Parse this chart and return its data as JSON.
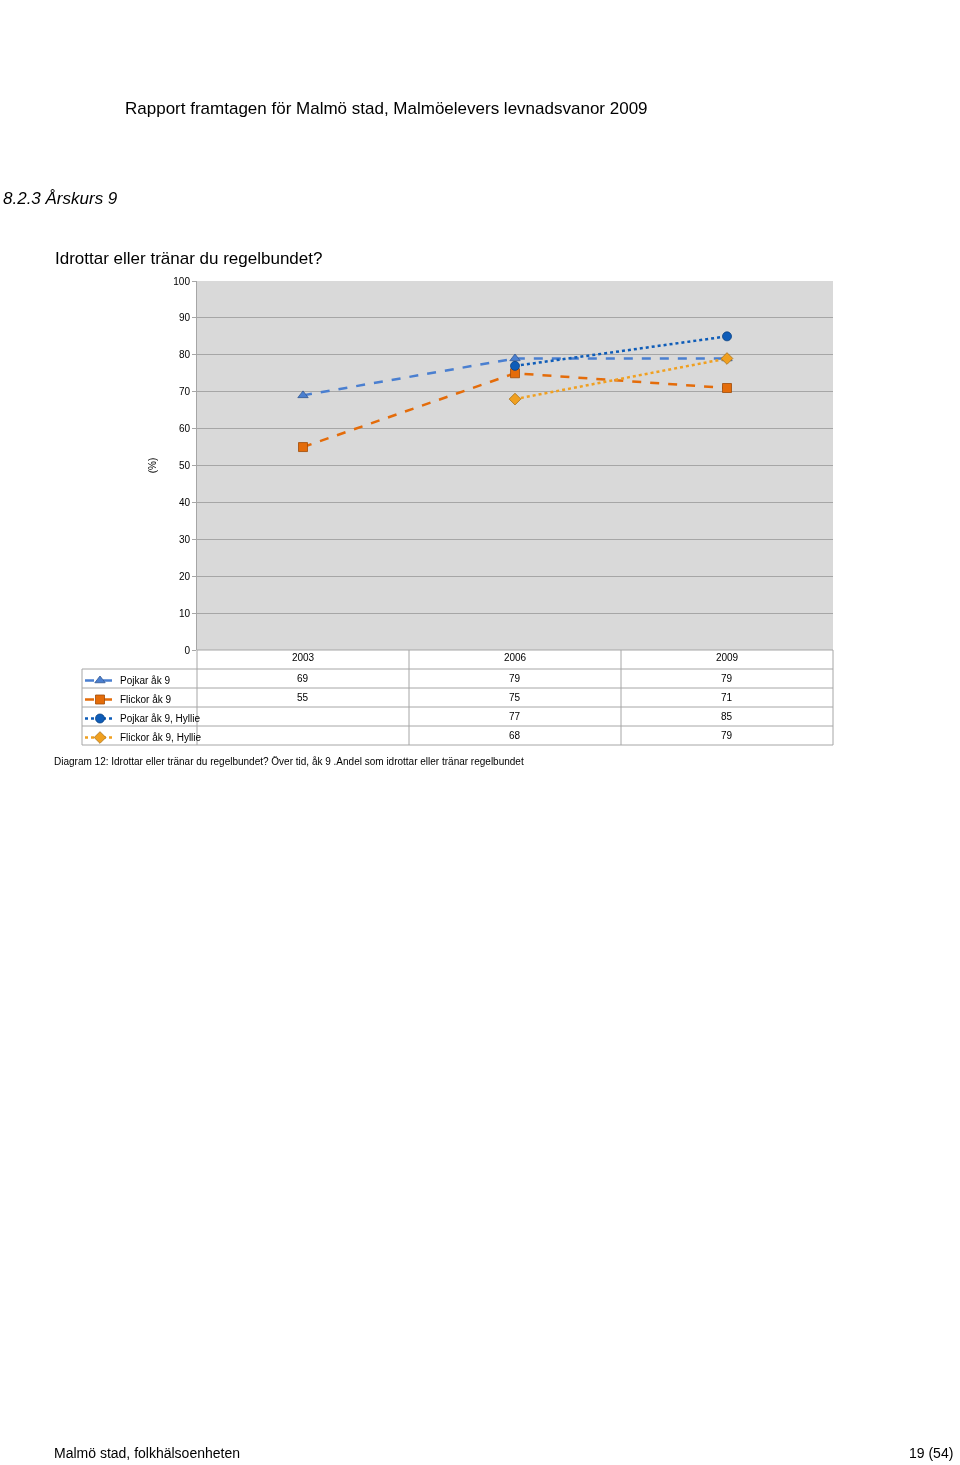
{
  "chart_data": {
    "type": "line",
    "title": "Idrottar eller tränar du regelbundet?",
    "ylabel": "(%)",
    "annotations": [
      "Rapport framtagen för Malmö stad, Malmöelevers levnadsvanor 2009",
      "8.2.3 Årskurs 9",
      "Diagram 12: Idrottar eller tränar du regelbundet? Över tid, åk 9 .Andel som idrottar eller tränar regelbundet",
      "Malmö stad, folkhälsoenheten",
      "19 (54)"
    ],
    "categories": [
      "2003",
      "2006",
      "2009"
    ],
    "series": [
      {
        "name": "Pojkar åk 9",
        "color": "#4a7fd0",
        "values": [
          69,
          79,
          79
        ],
        "marker": "triangle",
        "line_style": "dashed"
      },
      {
        "name": "Flickor åk 9",
        "color": "#e46c0a",
        "values": [
          55,
          75,
          71
        ],
        "marker": "square",
        "line_style": "dashed"
      },
      {
        "name": "Pojkar åk 9, Hyllie",
        "color": "#0e5cb8",
        "values": [
          null,
          77,
          85
        ],
        "marker": "circle",
        "line_style": "dotted"
      },
      {
        "name": "Flickor åk 9, Hyllie",
        "color": "#f0a020",
        "values": [
          null,
          68,
          79
        ],
        "marker": "diamond",
        "line_style": "dotted"
      }
    ],
    "ylim": [
      0,
      100
    ],
    "yticks": [
      0,
      10,
      20,
      30,
      40,
      50,
      60,
      70,
      80,
      90,
      100
    ],
    "grid": "y",
    "legend": "bottom left",
    "data_labels": true
  }
}
